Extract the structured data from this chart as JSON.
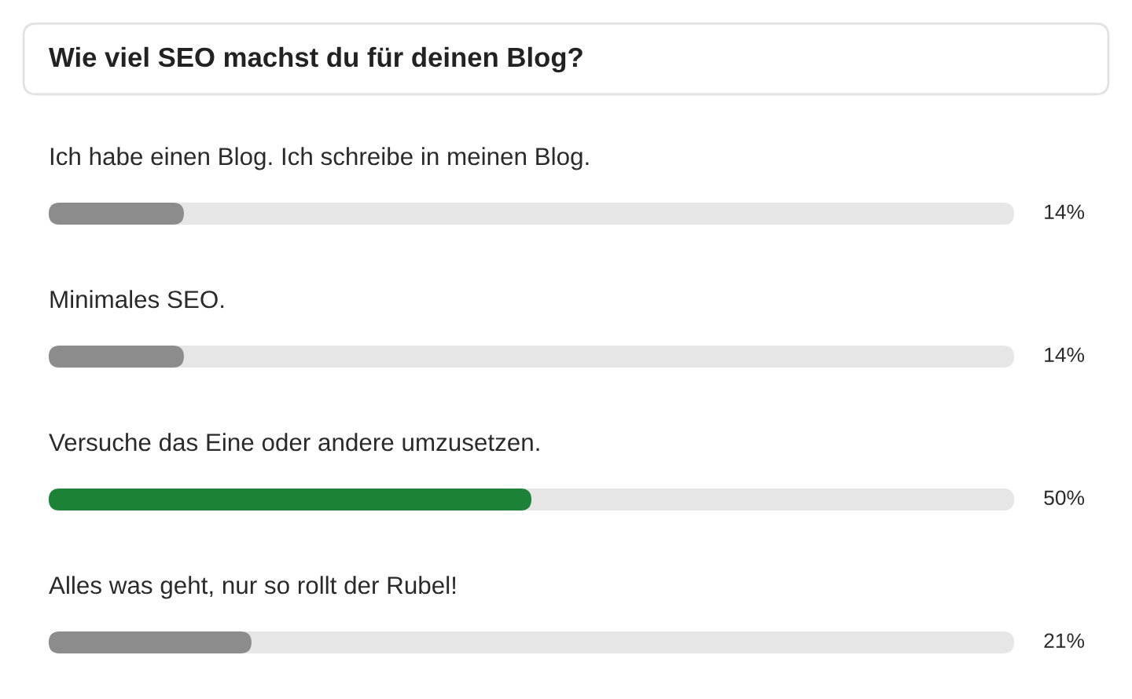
{
  "chart_data": {
    "type": "bar",
    "orientation": "horizontal",
    "title": "Wie viel SEO machst du für deinen Blog?",
    "categories": [
      "Ich habe einen Blog. Ich schreibe in meinen Blog.",
      "Minimales SEO.",
      "Versuche das Eine oder andere umzusetzen.",
      "Alles was geht, nur so rollt der Rubel!"
    ],
    "values": [
      14,
      14,
      50,
      21
    ],
    "colors": [
      "#8c8c8c",
      "#8c8c8c",
      "#1b8238",
      "#8c8c8c"
    ],
    "value_labels": [
      "14%",
      "14%",
      "50%",
      "21%"
    ],
    "xlim": [
      0,
      100
    ],
    "tick_labels": "y"
  }
}
